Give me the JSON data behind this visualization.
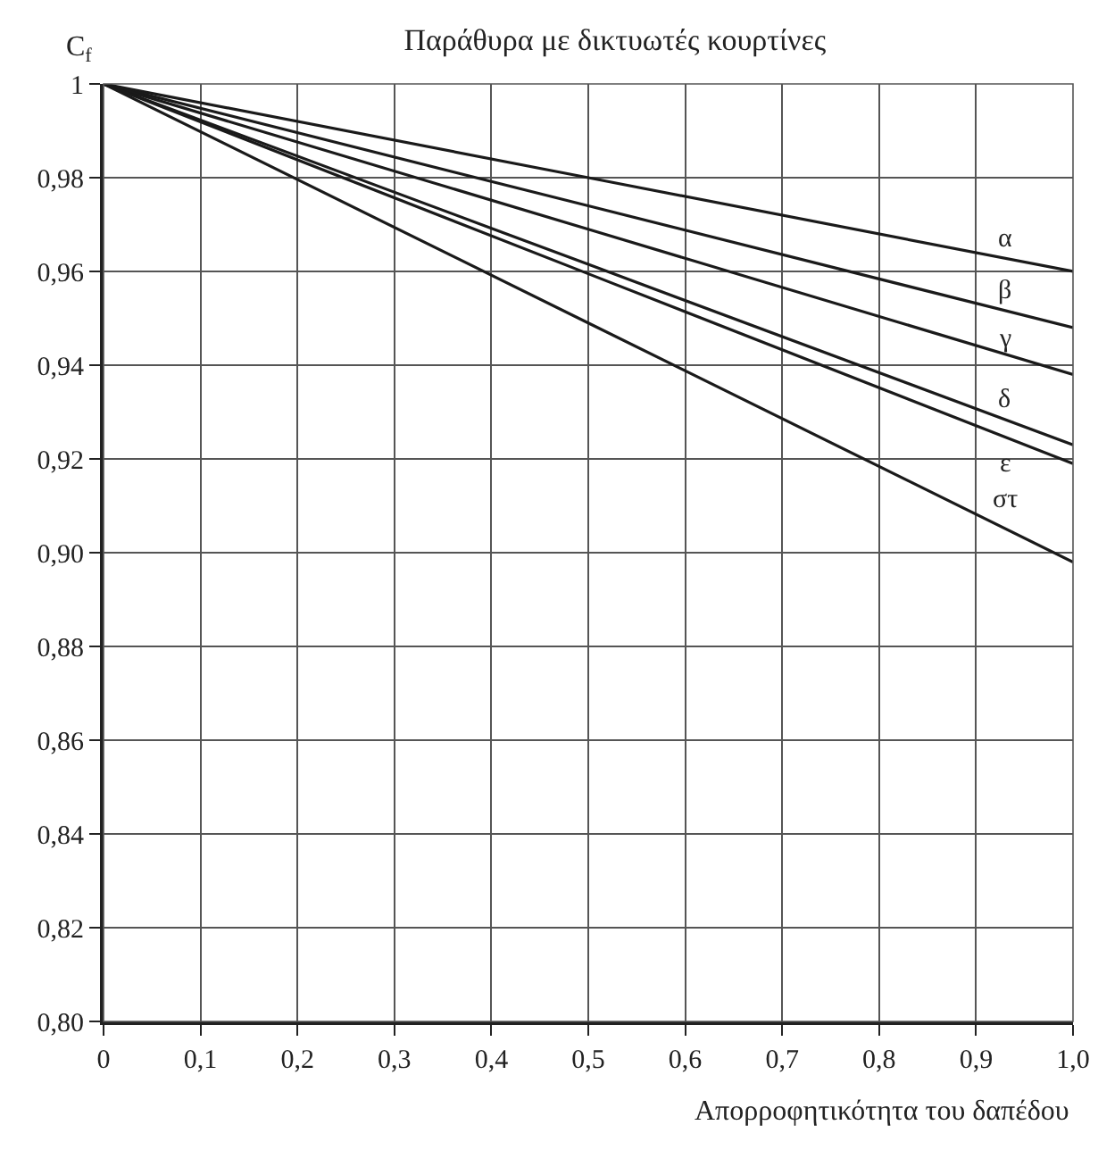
{
  "chart_data": {
    "type": "line",
    "title": "Παράθυρα με δικτυωτές κουρτίνες",
    "xlabel": "Απορροφητικότητα του δαπέδου",
    "ylabel": "C$_{f}$",
    "x": [
      0,
      0.5,
      1
    ],
    "series": [
      {
        "name": "α",
        "color": "#1a1a1a",
        "values": [
          1,
          0.98,
          0.96
        ]
      },
      {
        "name": "β",
        "color": "#1a1a1a",
        "values": [
          1,
          0.974,
          0.948
        ]
      },
      {
        "name": "γ",
        "color": "#1a1a1a",
        "values": [
          1,
          0.969,
          0.938
        ]
      },
      {
        "name": "δ",
        "color": "#1a1a1a",
        "values": [
          1,
          0.9615,
          0.923
        ]
      },
      {
        "name": "ε",
        "color": "#1a1a1a",
        "values": [
          1,
          0.9595,
          0.919
        ]
      },
      {
        "name": "στ",
        "color": "#1a1a1a",
        "values": [
          1,
          0.949,
          0.898
        ]
      }
    ],
    "xlim": [
      0,
      1
    ],
    "xticks": [
      0,
      {
        "value": 0.1,
        "label": "0,1"
      },
      {
        "value": 0.2,
        "label": "0,2"
      },
      {
        "value": 0.3,
        "label": "0,3"
      },
      {
        "value": 0.4,
        "label": "0,4"
      },
      {
        "value": 0.5,
        "label": "0,5"
      },
      {
        "value": 0.6,
        "label": "0,6"
      },
      {
        "value": 0.7,
        "label": "0,7"
      },
      {
        "value": 0.8,
        "label": "0,8"
      },
      {
        "value": 0.9,
        "label": "0,9"
      },
      {
        "value": 1,
        "label": "1,0"
      }
    ],
    "ylim": [
      0.8,
      1
    ],
    "yticks": [
      {
        "value": 0.8,
        "label": "0,80"
      },
      {
        "value": 0.82,
        "label": "0,82"
      },
      {
        "value": 0.84,
        "label": "0,84"
      },
      {
        "value": 0.86,
        "label": "0,86"
      },
      {
        "value": 0.88,
        "label": "0,88"
      },
      {
        "value": 0.9,
        "label": "0,90"
      },
      {
        "value": 0.92,
        "label": "0,92"
      },
      {
        "value": 0.94,
        "label": "0,94"
      },
      {
        "value": 0.96,
        "label": "0,96"
      },
      {
        "value": 0.98,
        "label": "0,98"
      },
      1
    ],
    "grid": true,
    "legend": false,
    "marker": "none",
    "line_style": "solid"
  }
}
